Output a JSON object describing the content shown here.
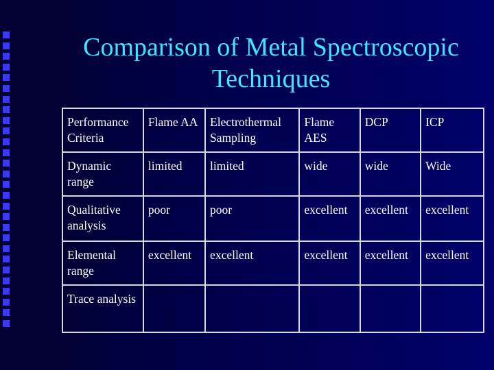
{
  "slide": {
    "title_line1": "Comparison of Metal Spectroscopic",
    "title_line2": "Techniques"
  },
  "table": {
    "header": [
      "Performance Criteria",
      "Flame AA",
      "Electrothermal Sampling",
      "Flame AES",
      "DCP",
      "ICP"
    ],
    "rows": [
      [
        "Dynamic range",
        "limited",
        "limited",
        "wide",
        "wide",
        "Wide"
      ],
      [
        "Qualitative analysis",
        "poor",
        "poor",
        "excellent",
        "excellent",
        "excellent"
      ],
      [
        "Elemental range",
        "excellent",
        "excellent",
        "excellent",
        "excellent",
        "excellent"
      ],
      [
        "Trace analysis",
        "",
        "",
        "",
        "",
        ""
      ]
    ]
  },
  "colors": {
    "background": "#00004a",
    "title": "#3fe6ff",
    "bullet_squares": "#3a3aff",
    "table_text": "#ffffff",
    "table_border": "#d8d8d8"
  }
}
